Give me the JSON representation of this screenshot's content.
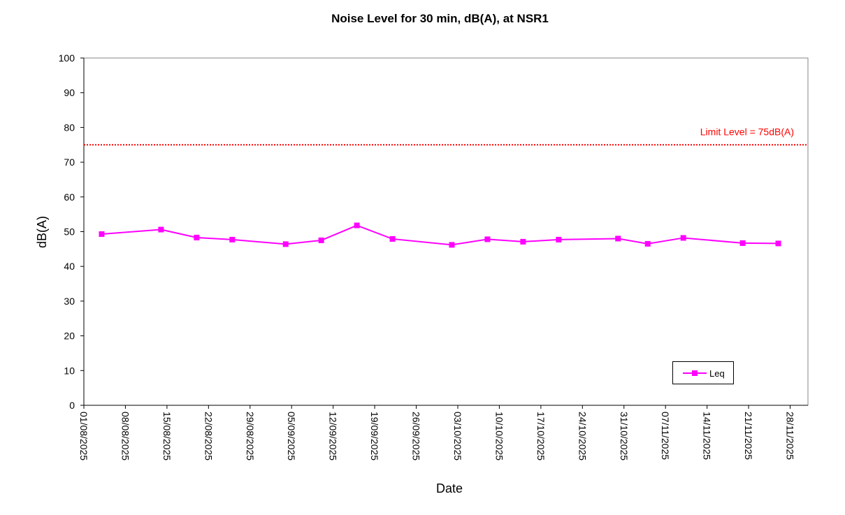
{
  "chart_data": {
    "type": "line",
    "title": "Noise Level for 30 min, dB(A), at NSR1",
    "xlabel": "Date",
    "ylabel": "dB(A)",
    "ylim": [
      0,
      100
    ],
    "yticks": [
      0,
      10,
      20,
      30,
      40,
      50,
      60,
      70,
      80,
      90,
      100
    ],
    "xlim": [
      "2025-08-01",
      "2025-12-01"
    ],
    "xticks": [
      "01/08/2025",
      "08/08/2025",
      "15/08/2025",
      "22/08/2025",
      "29/08/2025",
      "05/09/2025",
      "12/09/2025",
      "19/09/2025",
      "26/09/2025",
      "03/10/2025",
      "10/10/2025",
      "17/10/2025",
      "24/10/2025",
      "31/10/2025",
      "07/11/2025",
      "14/11/2025",
      "21/11/2025",
      "28/11/2025"
    ],
    "grid": false,
    "legend_position": "bottom-right",
    "series": [
      {
        "name": "Leq",
        "color": "#ff00ff",
        "marker": "square",
        "x": [
          "2025-08-04",
          "2025-08-14",
          "2025-08-20",
          "2025-08-26",
          "2025-09-04",
          "2025-09-10",
          "2025-09-16",
          "2025-09-22",
          "2025-10-02",
          "2025-10-08",
          "2025-10-14",
          "2025-10-20",
          "2025-10-30",
          "2025-11-04",
          "2025-11-10",
          "2025-11-20",
          "2025-11-26"
        ],
        "values": [
          49.3,
          50.6,
          48.3,
          47.7,
          46.4,
          47.5,
          51.8,
          47.9,
          46.2,
          47.8,
          47.1,
          47.7,
          48.0,
          46.5,
          48.2,
          46.7,
          46.6
        ]
      }
    ],
    "limit_line": {
      "label": "Limit Level = 75dB(A)",
      "value": 75,
      "color": "#ff0000"
    }
  }
}
